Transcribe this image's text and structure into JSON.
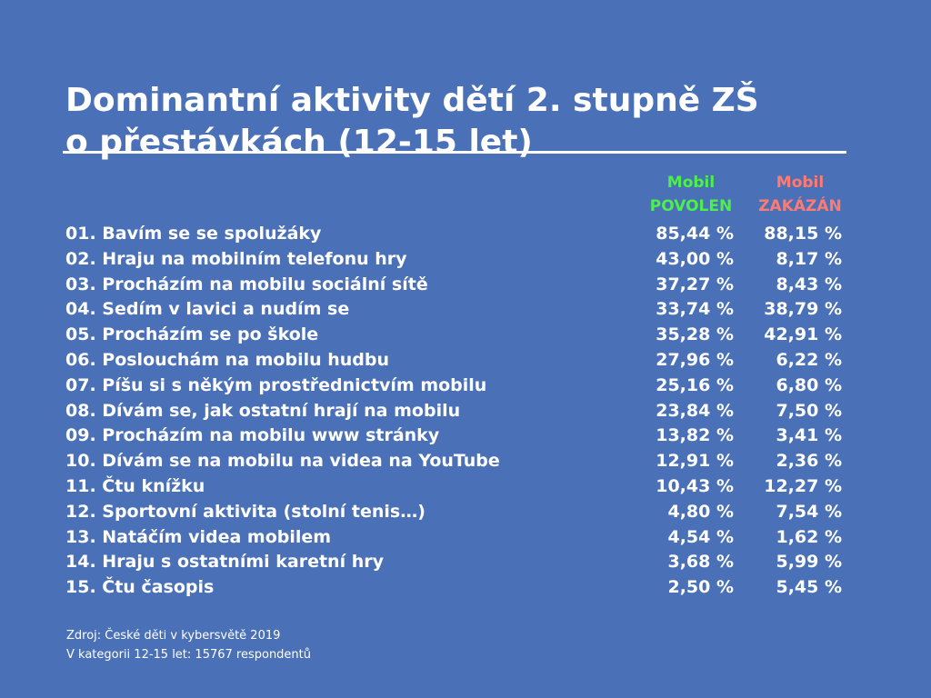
{
  "title": {
    "line1": "Dominantní aktivity dětí 2. stupně ZŠ",
    "line2": "o přestávkách (12-15 let)"
  },
  "columns": {
    "allowed": {
      "line1": "Mobil",
      "line2": "POVOLEN",
      "color": "#4cf04a"
    },
    "banned": {
      "line1": "Mobil",
      "line2": "ZAKÁZÁN",
      "color": "#ff7b72"
    }
  },
  "rows": [
    {
      "label": "01. Bavím se se spolužáky",
      "allowed": "85,44 %",
      "banned": "88,15 %"
    },
    {
      "label": "02. Hraju na mobilním telefonu hry",
      "allowed": "43,00 %",
      "banned": "8,17 %"
    },
    {
      "label": "03. Procházím na mobilu sociální sítě",
      "allowed": "37,27 %",
      "banned": "8,43 %"
    },
    {
      "label": "04. Sedím v lavici a nudím se",
      "allowed": "33,74 %",
      "banned": "38,79 %"
    },
    {
      "label": "05. Procházím se po škole",
      "allowed": "35,28 %",
      "banned": "42,91 %"
    },
    {
      "label": "06. Poslouchám na mobilu hudbu",
      "allowed": "27,96 %",
      "banned": "6,22 %"
    },
    {
      "label": "07. Píšu si s někým prostřednictvím mobilu",
      "allowed": "25,16 %",
      "banned": "6,80 %"
    },
    {
      "label": "08. Dívám se, jak ostatní hrají na mobilu",
      "allowed": "23,84 %",
      "banned": "7,50 %"
    },
    {
      "label": "09. Procházím na mobilu www stránky",
      "allowed": "13,82 %",
      "banned": "3,41 %"
    },
    {
      "label": "10. Dívám se na mobilu na videa na YouTube",
      "allowed": "12,91 %",
      "banned": "2,36 %"
    },
    {
      "label": "11. Čtu knížku",
      "allowed": "10,43 %",
      "banned": "12,27 %"
    },
    {
      "label": "12. Sportovní aktivita (stolní tenis…)",
      "allowed": "4,80 %",
      "banned": "7,54 %"
    },
    {
      "label": "13. Natáčím videa mobilem",
      "allowed": "4,54 %",
      "banned": "1,62 %"
    },
    {
      "label": "14. Hraju s ostatními karetní hry",
      "allowed": "3,68 %",
      "banned": "5,99 %"
    },
    {
      "label": "15. Čtu časopis",
      "allowed": "2,50 %",
      "banned": "5,45 %"
    }
  ],
  "source": {
    "line1": "Zdroj: České děti v kybersvětě 2019",
    "line2": "V kategorii 12-15 let: 15767 respondentů"
  },
  "colors": {
    "background": "#4a70b8",
    "text": "#ffffff",
    "allowed": "#4cf04a",
    "banned": "#ff7b72"
  }
}
